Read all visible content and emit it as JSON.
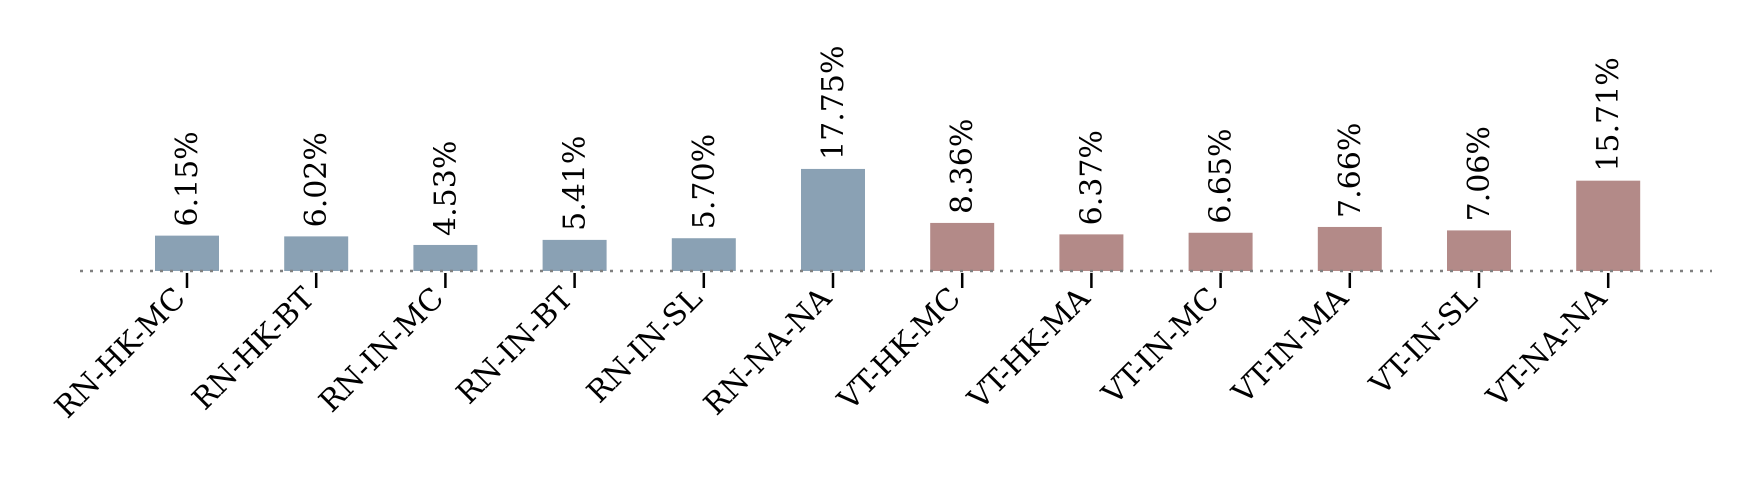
{
  "chart_data": {
    "type": "bar",
    "categories": [
      "RN-HK-MC",
      "RN-HK-BT",
      "RN-IN-MC",
      "RN-IN-BT",
      "RN-IN-SL",
      "RN-NA-NA",
      "VT-HK-MC",
      "VT-HK-MA",
      "VT-IN-MC",
      "VT-IN-MA",
      "VT-IN-SL",
      "VT-NA-NA"
    ],
    "values": [
      6.15,
      6.02,
      4.53,
      5.41,
      5.7,
      17.75,
      8.36,
      6.37,
      6.65,
      7.66,
      7.06,
      15.71
    ],
    "value_labels": [
      "6.15%",
      "6.02%",
      "4.53%",
      "5.41%",
      "5.70%",
      "17.75%",
      "8.36%",
      "6.37%",
      "6.65%",
      "7.66%",
      "7.06%",
      "15.71%"
    ],
    "bar_colors": [
      "#8aa1b4",
      "#8aa1b4",
      "#8aa1b4",
      "#8aa1b4",
      "#8aa1b4",
      "#8aa1b4",
      "#b38a88",
      "#b38a88",
      "#b38a88",
      "#b38a88",
      "#b38a88",
      "#b38a88"
    ],
    "baseline_style": "dotted",
    "baseline_color": "#808080",
    "title": "",
    "xlabel": "",
    "ylabel": "",
    "grid": false,
    "legend": "none"
  }
}
